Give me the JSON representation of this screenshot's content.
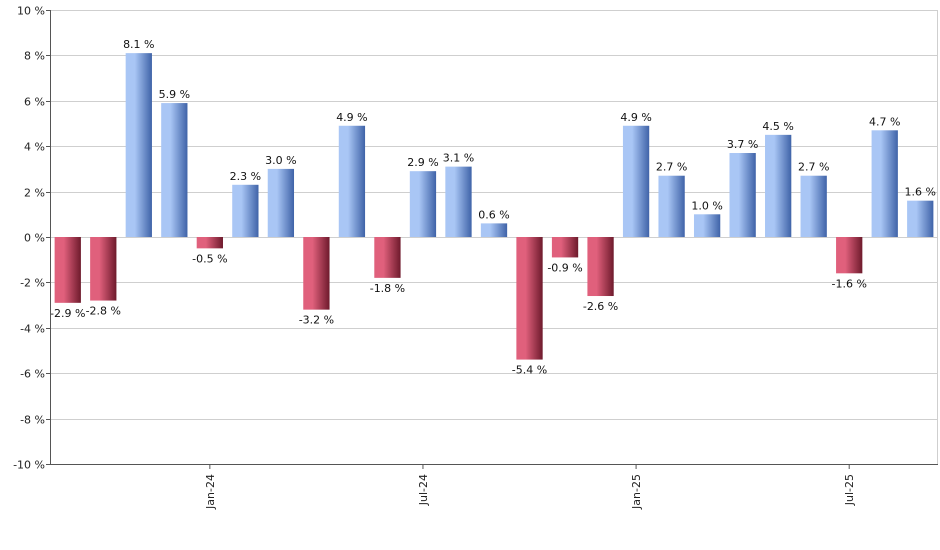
{
  "chart_data": {
    "type": "bar",
    "title": "",
    "xlabel": "",
    "ylabel": "",
    "ylim": [
      -10,
      10
    ],
    "ytick_step": 2,
    "ytick_suffix": " %",
    "grid": true,
    "values": [
      -2.9,
      -2.8,
      8.1,
      5.9,
      -0.5,
      2.3,
      3.0,
      -3.2,
      4.9,
      -1.8,
      2.9,
      3.1,
      0.6,
      -5.4,
      -0.9,
      -2.6,
      4.9,
      2.7,
      1.0,
      3.7,
      4.5,
      2.7,
      -1.6,
      4.7,
      1.6
    ],
    "value_labels": [
      "-2.9 %",
      "-2.8 %",
      "8.1 %",
      "5.9 %",
      "-0.5 %",
      "2.3 %",
      "3.0 %",
      "-3.2 %",
      "4.9 %",
      "-1.8 %",
      "2.9 %",
      "3.1 %",
      "0.6 %",
      "-5.4 %",
      "-0.9 %",
      "-2.6 %",
      "4.9 %",
      "2.7 %",
      "1.0 %",
      "3.7 %",
      "4.5 %",
      "2.7 %",
      "-1.6 %",
      "4.7 %",
      "1.6 %"
    ],
    "x_ticks": [
      {
        "after_bar_index": 4,
        "label": "Jan-24"
      },
      {
        "after_bar_index": 10,
        "label": "Jul-24"
      },
      {
        "after_bar_index": 16,
        "label": "Jan-25"
      },
      {
        "after_bar_index": 22,
        "label": "Jul-25"
      }
    ],
    "colors": {
      "positive_light": "#a9c6f5",
      "positive_dark": "#3f63a8",
      "negative_light": "#e0607c",
      "negative_dark": "#6e1a2c"
    }
  }
}
